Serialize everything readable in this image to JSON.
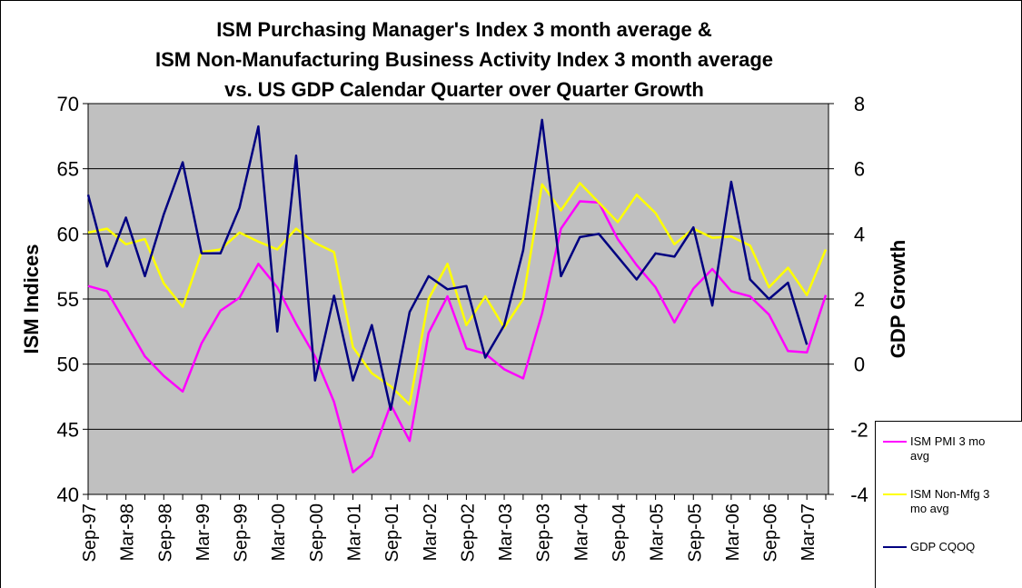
{
  "chart_data": {
    "type": "line",
    "title": [
      "ISM Purchasing Manager's Index 3 month average &",
      "ISM Non-Manufacturing Business Activity Index 3 month average",
      "vs. US GDP Calendar Quarter over Quarter Growth"
    ],
    "y_label": "ISM Indices",
    "y2_label": "GDP Growth",
    "categories": [
      "Sep-97",
      null,
      "Mar-98",
      null,
      "Sep-98",
      null,
      "Mar-99",
      null,
      "Sep-99",
      null,
      "Mar-00",
      null,
      "Sep-00",
      null,
      "Mar-01",
      null,
      "Sep-01",
      null,
      "Mar-02",
      null,
      "Sep-02",
      null,
      "Mar-03",
      null,
      "Sep-03",
      null,
      "Mar-04",
      null,
      "Sep-04",
      null,
      "Mar-05",
      null,
      "Sep-05",
      null,
      "Mar-06",
      null,
      "Sep-06",
      null,
      "Mar-07",
      null
    ],
    "ylim": [
      40,
      70
    ],
    "yticks": [
      40,
      45,
      50,
      55,
      60,
      65,
      70
    ],
    "y2lim": [
      -4,
      8
    ],
    "y2ticks": [
      -4,
      -2,
      0,
      2,
      4,
      6,
      8
    ],
    "grid": true,
    "plot_background": "#c0c0c0",
    "legend": "bottom-right",
    "series": [
      {
        "name": "ISM PMI 3 mo avg",
        "color": "#ff00ff",
        "values": [
          56.0,
          55.6,
          53.1,
          50.6,
          49.1,
          47.9,
          51.6,
          54.1,
          55.1,
          57.7,
          55.9,
          53.1,
          50.6,
          47.1,
          41.7,
          42.9,
          46.9,
          44.1,
          52.4,
          55.2,
          51.2,
          50.8,
          49.6,
          48.9,
          53.9,
          60.4,
          62.5,
          62.4,
          59.6,
          57.6,
          55.9,
          53.2,
          55.8,
          57.3,
          55.6,
          55.2,
          53.8,
          51.0,
          50.9,
          55.3
        ]
      },
      {
        "name": "ISM Non-Mfg 3 mo avg",
        "color": "#ffff00",
        "values": [
          60.1,
          60.4,
          59.2,
          59.6,
          56.2,
          54.4,
          58.6,
          58.8,
          60.1,
          59.4,
          58.8,
          60.4,
          59.3,
          58.6,
          51.3,
          49.3,
          48.3,
          46.9,
          55.0,
          57.7,
          53.0,
          55.2,
          52.8,
          55.0,
          63.8,
          61.8,
          63.9,
          62.4,
          60.9,
          63.0,
          61.6,
          59.2,
          60.4,
          59.7,
          59.8,
          59.1,
          55.9,
          57.4,
          55.3,
          58.8
        ]
      },
      {
        "name": "GDP CQOQ",
        "color": "#000080",
        "axis": "y2",
        "values": [
          5.2,
          3.0,
          4.5,
          2.7,
          4.6,
          6.2,
          3.4,
          3.4,
          4.8,
          7.3,
          1.0,
          6.4,
          -0.5,
          2.1,
          -0.5,
          1.2,
          -1.4,
          1.6,
          2.7,
          2.3,
          2.4,
          0.2,
          1.2,
          3.5,
          7.5,
          2.7,
          3.9,
          4.0,
          3.3,
          2.6,
          3.4,
          3.3,
          4.2,
          1.8,
          5.6,
          2.6,
          2.0,
          2.5,
          0.6,
          null
        ]
      }
    ]
  }
}
